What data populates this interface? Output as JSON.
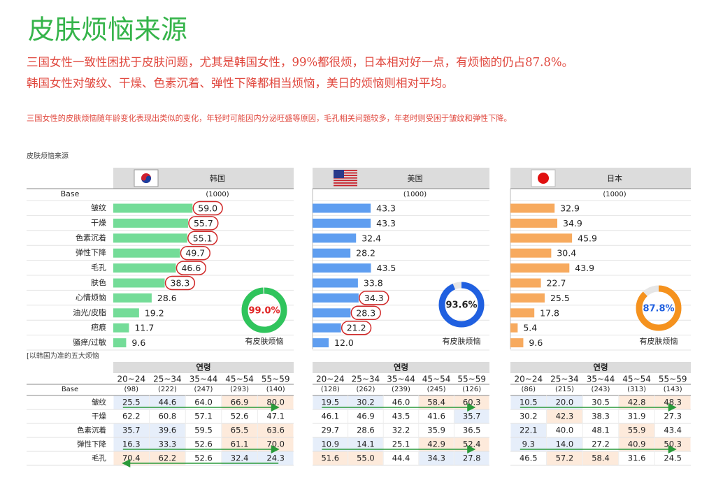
{
  "header": {
    "title": "皮肤烦恼来源",
    "lines": [
      "三国女性一致性困扰于皮肤问题，尤其是韩国女性，99%都很烦，日本相对好一点，有烦恼的仍占87.8%。",
      "韩国女性对皱纹、干燥、色素沉着、弹性下降都相当烦恼，美日的烦恼则相对平均。"
    ],
    "note": "三国女性的皮肤烦恼随年龄变化表现出类似的变化，年轻时可能因内分泌旺盛等原因，毛孔相关问题较多，年老时则受困于皱纹和弹性下降。",
    "section": "皮肤烦恼来源"
  },
  "chart_data": [
    {
      "type": "bar",
      "title": "韩国",
      "base_label": "Base",
      "base": "(1000)",
      "categories": [
        "皱纹",
        "干燥",
        "色素沉着",
        "弹性下降",
        "毛孔",
        "肤色",
        "心情烦恼",
        "油光/皮脂",
        "疤痕",
        "骚痒/过敏"
      ],
      "values": [
        59.0,
        55.7,
        55.1,
        49.7,
        46.6,
        38.3,
        28.6,
        19.2,
        11.7,
        9.6
      ],
      "value_labels": [
        "59.0",
        "55.7",
        "55.1",
        "49.7",
        "46.6",
        "38.3",
        "28.6",
        "19.2",
        "11.7",
        "9.6"
      ],
      "color": "#74dc98",
      "xlim": [
        0,
        100
      ],
      "donut": {
        "value": 99.0,
        "label": "99.0%",
        "caption": "有皮肤烦恼",
        "range": [
          0,
          100
        ],
        "color": "#2fc45c"
      }
    },
    {
      "type": "bar",
      "title": "美国",
      "base": "(1000)",
      "values": [
        43.3,
        43.3,
        32.4,
        28.2,
        43.5,
        33.8,
        34.3,
        28.3,
        21.2,
        12.0
      ],
      "value_labels": [
        "43.3",
        "43.3",
        "32.4",
        "28.2",
        "43.5",
        "33.8",
        "34.3",
        "28.3",
        "21.2",
        "12.0"
      ],
      "color": "#5f9ef0",
      "xlim": [
        0,
        100
      ],
      "donut": {
        "value": 93.6,
        "label": "93.6%",
        "caption": "有皮肤烦恼",
        "range": [
          0,
          100
        ],
        "color": "#2060e0"
      }
    },
    {
      "type": "bar",
      "title": "日本",
      "base": "(1000)",
      "values": [
        32.9,
        34.9,
        45.9,
        30.4,
        43.9,
        22.7,
        25.5,
        17.8,
        5.4,
        9.6
      ],
      "value_labels": [
        "32.9",
        "34.9",
        "45.9",
        "30.4",
        "43.9",
        "22.7",
        "25.5",
        "17.8",
        "5.4",
        "9.6"
      ],
      "color": "#f7aa5e",
      "xlim": [
        0,
        100
      ],
      "donut": {
        "value": 87.8,
        "label": "87.8%",
        "caption": "有皮肤烦恼",
        "range": [
          0,
          100
        ],
        "color": "#f5921e"
      }
    }
  ],
  "age_tables": {
    "note": "[以韩国为准的五大烦恼",
    "header": "연령",
    "columns": [
      "20~24",
      "25~34",
      "35~44",
      "45~54",
      "55~59"
    ],
    "base_label": "Base",
    "row_labels": [
      "皱纹",
      "干燥",
      "色素沉着",
      "弹性下降",
      "毛孔"
    ],
    "panels": [
      {
        "base": [
          "(98)",
          "(222)",
          "(247)",
          "(293)",
          "(140)"
        ],
        "rows": [
          [
            "25.5",
            "44.6",
            "64.0",
            "66.9",
            "80.0"
          ],
          [
            "62.2",
            "60.8",
            "57.1",
            "52.6",
            "47.1"
          ],
          [
            "35.7",
            "39.6",
            "59.5",
            "65.5",
            "63.6"
          ],
          [
            "16.3",
            "33.3",
            "52.6",
            "61.1",
            "70.0"
          ],
          [
            "70.4",
            "62.2",
            "52.6",
            "32.4",
            "24.3"
          ]
        ]
      },
      {
        "base": [
          "(128)",
          "(262)",
          "(239)",
          "(245)",
          "(126)"
        ],
        "rows": [
          [
            "19.5",
            "30.2",
            "46.0",
            "58.4",
            "60.3"
          ],
          [
            "46.1",
            "46.9",
            "43.5",
            "41.6",
            "35.7"
          ],
          [
            "29.7",
            "28.6",
            "32.2",
            "35.9",
            "36.5"
          ],
          [
            "10.9",
            "14.1",
            "25.1",
            "42.9",
            "52.4"
          ],
          [
            "51.6",
            "55.0",
            "44.4",
            "34.3",
            "27.8"
          ]
        ]
      },
      {
        "base": [
          "(86)",
          "(215)",
          "(243)",
          "(313)",
          "(143)"
        ],
        "rows": [
          [
            "10.5",
            "20.0",
            "30.5",
            "42.8",
            "48.3"
          ],
          [
            "30.2",
            "42.3",
            "38.3",
            "31.9",
            "27.3"
          ],
          [
            "22.1",
            "40.0",
            "48.1",
            "55.9",
            "43.4"
          ],
          [
            "9.3",
            "14.0",
            "27.2",
            "40.9",
            "50.3"
          ],
          [
            "46.5",
            "57.2",
            "58.4",
            "31.6",
            "24.5"
          ]
        ]
      }
    ]
  }
}
